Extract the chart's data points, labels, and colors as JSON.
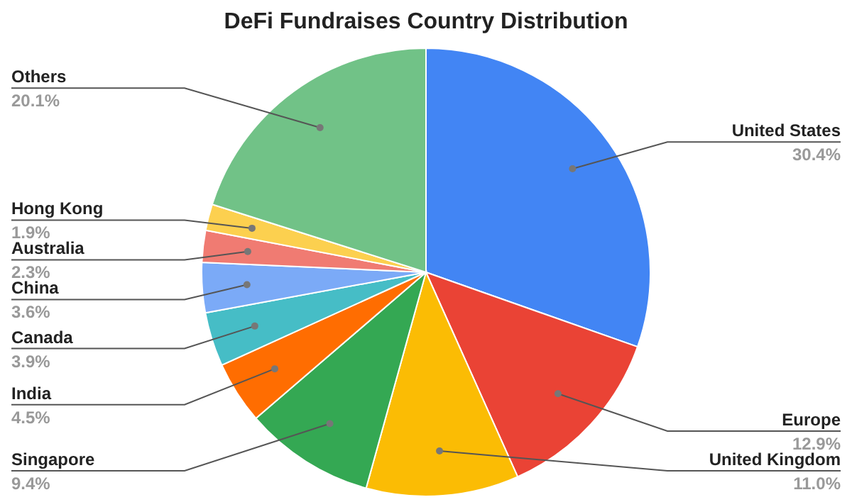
{
  "chart_data": {
    "type": "pie",
    "title": "DeFi Fundraises Country Distribution",
    "categories": [
      "United States",
      "Europe",
      "United Kingdom",
      "Singapore",
      "India",
      "Canada",
      "China",
      "Australia",
      "Hong Kong",
      "Others"
    ],
    "values": [
      30.4,
      12.9,
      11.0,
      9.4,
      4.5,
      3.9,
      3.6,
      2.3,
      1.9,
      20.1
    ],
    "colors": [
      "#4285f4",
      "#ea4335",
      "#fbbc04",
      "#34a853",
      "#ff6d01",
      "#46bdc6",
      "#7baaf7",
      "#f07b72",
      "#fcd04f",
      "#71c287"
    ],
    "value_labels": [
      "30.4%",
      "12.9%",
      "11.0%",
      "9.4%",
      "4.5%",
      "3.9%",
      "3.6%",
      "2.3%",
      "1.9%",
      "20.1%"
    ]
  }
}
